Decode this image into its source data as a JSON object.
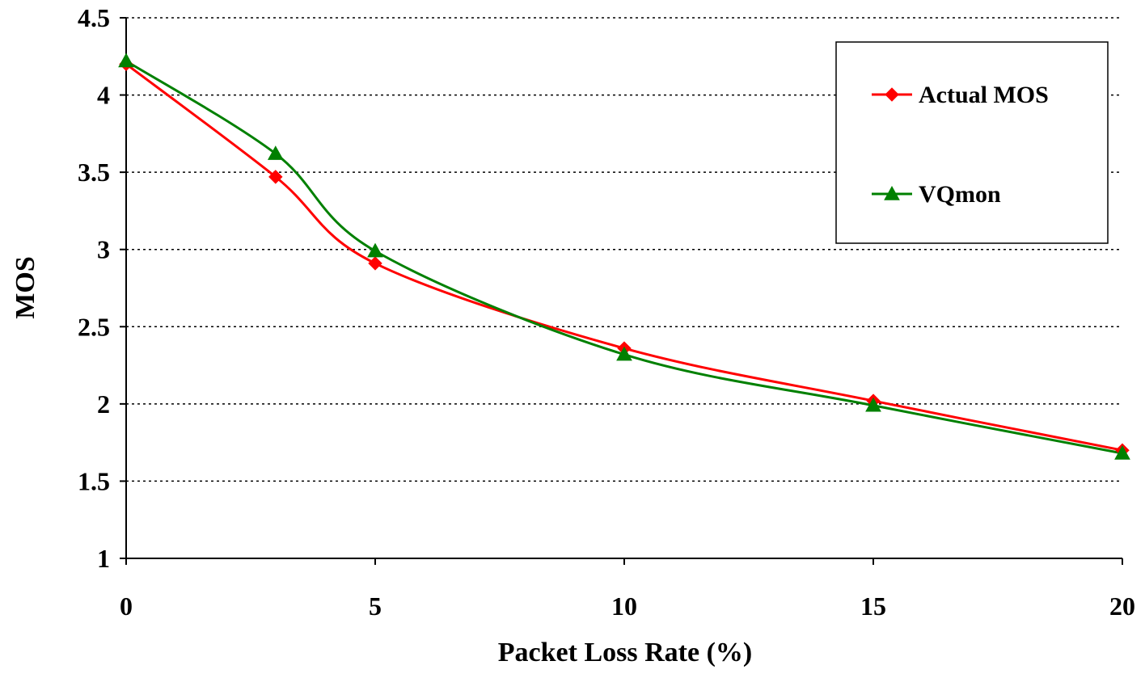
{
  "chart_data": {
    "type": "line",
    "xlabel": "Packet Loss Rate (%)",
    "ylabel": "MOS",
    "xlim": [
      0,
      20
    ],
    "ylim": [
      1,
      4.5
    ],
    "x_ticks": [
      0,
      5,
      10,
      15,
      20
    ],
    "y_ticks": [
      1,
      1.5,
      2,
      2.5,
      3,
      3.5,
      4,
      4.5
    ],
    "x_tick_labels": [
      "0",
      "5",
      "10",
      "15",
      "20"
    ],
    "y_tick_labels": [
      "1",
      "1.5",
      "2",
      "2.5",
      "3",
      "3.5",
      "4",
      "4.5"
    ],
    "grid": "horizontal dotted",
    "legend_position": "top-right",
    "x": [
      0,
      3,
      5,
      10,
      15,
      20
    ],
    "series": [
      {
        "name": "Actual MOS",
        "values": [
          4.2,
          3.47,
          2.91,
          2.36,
          2.02,
          1.7
        ],
        "color": "#ff0000",
        "marker": "diamond"
      },
      {
        "name": "VQmon",
        "values": [
          4.22,
          3.62,
          2.99,
          2.32,
          1.99,
          1.68
        ],
        "color": "#008000",
        "marker": "triangle"
      }
    ]
  }
}
